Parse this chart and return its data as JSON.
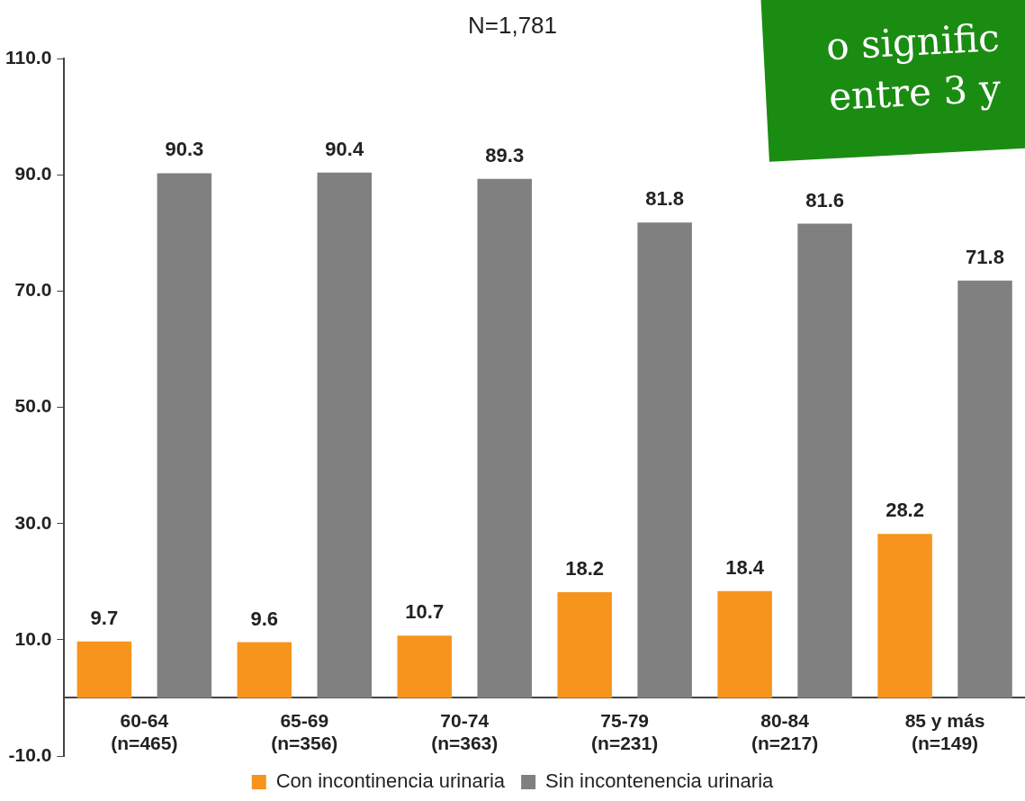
{
  "chart_data": {
    "type": "bar",
    "title": "N=1,781",
    "categories": [
      "60-64\n(n=465)",
      "65-69\n(n=356)",
      "70-74\n(n=363)",
      "75-79\n(n=231)",
      "80-84\n(n=217)",
      "85 y más\n(n=149)"
    ],
    "series": [
      {
        "name": "Con incontinencia urinaria",
        "color": "#f7941d",
        "values": [
          9.7,
          9.6,
          10.7,
          18.2,
          18.4,
          28.2
        ]
      },
      {
        "name": "Sin incontenencia urinaria",
        "color": "#808080",
        "values": [
          90.3,
          90.4,
          89.3,
          81.8,
          81.6,
          71.8
        ]
      }
    ],
    "ylim": [
      -10,
      110
    ],
    "yticks": [
      {
        "value": -10,
        "label": "-10.0"
      },
      {
        "value": 10,
        "label": "10.0"
      },
      {
        "value": 30,
        "label": "30.0"
      },
      {
        "value": 50,
        "label": "50.0"
      },
      {
        "value": 70,
        "label": "70.0"
      },
      {
        "value": 90,
        "label": "90.0"
      },
      {
        "value": 110,
        "label": "110.0"
      }
    ],
    "grid": false,
    "legend": "bottom",
    "data_labels": true,
    "annotations": [
      "o signific",
      "entre 3 y"
    ]
  }
}
